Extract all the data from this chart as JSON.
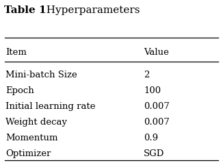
{
  "title_bold": "Table 1",
  "title_normal": "  Hyperparameters",
  "columns": [
    "Item",
    "Value"
  ],
  "rows": [
    [
      "Mini-batch Size",
      "2"
    ],
    [
      "Epoch",
      "100"
    ],
    [
      "Initial learning rate",
      "0.007"
    ],
    [
      "Weight decay",
      "0.007"
    ],
    [
      "Momentum",
      "0.9"
    ],
    [
      "Optimizer",
      "SGD"
    ]
  ],
  "background_color": "#ffffff",
  "text_color": "#000000",
  "font_size": 9.5,
  "title_font_size": 11,
  "header_font_size": 9.5
}
